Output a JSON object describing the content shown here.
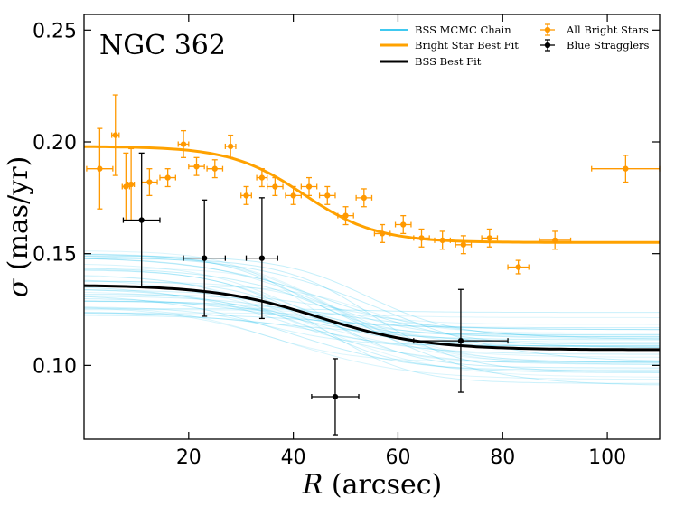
{
  "chart_data": {
    "type": "scatter",
    "title": "NGC 362",
    "xlabel_var": "R",
    "xlabel_unit": "(arcsec)",
    "ylabel_var": "σ",
    "ylabel_unit": "(mas/yr)",
    "xlim": [
      0,
      110
    ],
    "ylim": [
      0.067,
      0.257
    ],
    "x_ticks": [
      20,
      40,
      60,
      80,
      100
    ],
    "x_tick_labels": [
      "20",
      "40",
      "60",
      "80",
      "100"
    ],
    "y_ticks": [
      0.1,
      0.15,
      0.2,
      0.25
    ],
    "y_tick_labels": [
      "0.10",
      "0.15",
      "0.20",
      "0.25"
    ],
    "colors": {
      "bright": "#ff9900",
      "bss": "#000000",
      "mcmc": "#00b7eb",
      "bright_fit": "#ffa200"
    },
    "legend": {
      "mcmc": "BSS MCMC Chain",
      "bright_fit": "Bright Star Best Fit",
      "bss_fit": "BSS Best Fit",
      "bright_points": "All Bright Stars",
      "bss_points": "Blue Stragglers"
    },
    "bright_fit_params": {
      "sigma_center": 0.198,
      "sigma_outer": 0.155,
      "transition_r": 42,
      "width": 7
    },
    "bss_fit_params": {
      "sigma_center": 0.136,
      "sigma_outer": 0.107,
      "transition_r": 45,
      "width": 10
    },
    "mcmc_chain": {
      "n_lines": 40,
      "center_range": [
        0.122,
        0.152
      ],
      "outer_range": [
        0.09,
        0.124
      ]
    },
    "bright_stars": [
      {
        "x": 3,
        "y": 0.188,
        "xerr": 2.5,
        "yerr": 0.018
      },
      {
        "x": 6,
        "y": 0.203,
        "xerr": 0.7,
        "yerr": 0.018
      },
      {
        "x": 8,
        "y": 0.18,
        "xerr": 0.7,
        "yerr": 0.015
      },
      {
        "x": 9,
        "y": 0.181,
        "xerr": 0.6,
        "yerr": 0.016
      },
      {
        "x": 12.5,
        "y": 0.182,
        "xerr": 1.5,
        "yerr": 0.006
      },
      {
        "x": 16,
        "y": 0.184,
        "xerr": 1.5,
        "yerr": 0.004
      },
      {
        "x": 19,
        "y": 0.199,
        "xerr": 1.0,
        "yerr": 0.006
      },
      {
        "x": 21.5,
        "y": 0.189,
        "xerr": 1.5,
        "yerr": 0.004
      },
      {
        "x": 25,
        "y": 0.188,
        "xerr": 1.5,
        "yerr": 0.004
      },
      {
        "x": 28,
        "y": 0.198,
        "xerr": 1.0,
        "yerr": 0.005
      },
      {
        "x": 31,
        "y": 0.176,
        "xerr": 1.0,
        "yerr": 0.004
      },
      {
        "x": 34,
        "y": 0.184,
        "xerr": 1.0,
        "yerr": 0.004
      },
      {
        "x": 36.5,
        "y": 0.18,
        "xerr": 1.5,
        "yerr": 0.004
      },
      {
        "x": 40,
        "y": 0.176,
        "xerr": 1.5,
        "yerr": 0.004
      },
      {
        "x": 43,
        "y": 0.18,
        "xerr": 1.5,
        "yerr": 0.004
      },
      {
        "x": 46.5,
        "y": 0.176,
        "xerr": 1.5,
        "yerr": 0.004
      },
      {
        "x": 50,
        "y": 0.167,
        "xerr": 1.5,
        "yerr": 0.004
      },
      {
        "x": 53.5,
        "y": 0.175,
        "xerr": 1.5,
        "yerr": 0.004
      },
      {
        "x": 57,
        "y": 0.159,
        "xerr": 1.5,
        "yerr": 0.004
      },
      {
        "x": 61,
        "y": 0.163,
        "xerr": 1.5,
        "yerr": 0.004
      },
      {
        "x": 64.5,
        "y": 0.157,
        "xerr": 1.5,
        "yerr": 0.004
      },
      {
        "x": 68.5,
        "y": 0.156,
        "xerr": 1.5,
        "yerr": 0.004
      },
      {
        "x": 72.5,
        "y": 0.154,
        "xerr": 1.5,
        "yerr": 0.004
      },
      {
        "x": 77.5,
        "y": 0.157,
        "xerr": 1.5,
        "yerr": 0.004
      },
      {
        "x": 83,
        "y": 0.144,
        "xerr": 2.0,
        "yerr": 0.003
      },
      {
        "x": 90,
        "y": 0.156,
        "xerr": 3.0,
        "yerr": 0.004
      },
      {
        "x": 103.5,
        "y": 0.188,
        "xerr": 6.5,
        "yerr": 0.006
      }
    ],
    "blue_stragglers": [
      {
        "x": 11,
        "y": 0.165,
        "xerr": 3.5,
        "yerr": 0.03
      },
      {
        "x": 23,
        "y": 0.148,
        "xerr": 4.0,
        "yerr": 0.026
      },
      {
        "x": 34,
        "y": 0.148,
        "xerr": 3.0,
        "yerr": 0.027
      },
      {
        "x": 48,
        "y": 0.086,
        "xerr": 4.5,
        "yerr": 0.017
      },
      {
        "x": 72,
        "y": 0.111,
        "xerr": 9.0,
        "yerr": 0.023
      }
    ]
  }
}
